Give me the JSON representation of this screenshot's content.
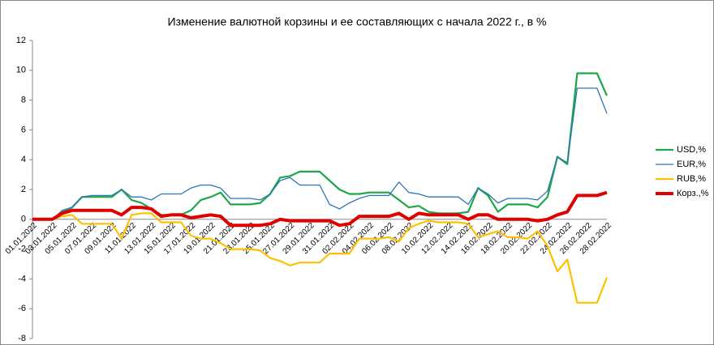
{
  "chart_data": {
    "type": "line",
    "title": "Изменение валютной корзины и ее составляющих с начала 2022 г., в %",
    "categories": [
      "01.01.2022",
      null,
      "03.01.2022",
      null,
      "05.01.2022",
      null,
      "07.01.2022",
      null,
      "09.01.2022",
      null,
      "11.01.2022",
      null,
      "13.01.2022",
      null,
      "15.01.2022",
      null,
      "17.01.2022",
      null,
      "19.01.2022",
      null,
      "21.01.2022",
      null,
      "23.01.2022",
      null,
      "25.01.2022",
      null,
      "27.01.2022",
      null,
      "29.01.2022",
      null,
      "31.01.2022",
      null,
      "02.02.2022",
      null,
      "04.02.2022",
      null,
      "06.02.2022",
      null,
      "08.02.2022",
      null,
      "10.02.2022",
      null,
      "12.02.2022",
      null,
      "14.02.2022",
      null,
      "16.02.2022",
      null,
      "18.02.2022",
      null,
      "20.02.2022",
      null,
      "22.02.2022",
      null,
      "24.02.2022",
      null,
      "26.02.2022",
      null,
      "28.02.2022"
    ],
    "series": [
      {
        "name": "USD,%",
        "color": "#1fa64a",
        "width": 2.2,
        "values": [
          0,
          0,
          0,
          0.5,
          0.8,
          1.5,
          1.5,
          1.5,
          1.5,
          2.0,
          1.3,
          1.1,
          0.7,
          0.3,
          0.3,
          0.3,
          0.6,
          1.3,
          1.5,
          1.8,
          1.0,
          1.0,
          1.0,
          1.1,
          1.7,
          2.8,
          2.9,
          3.2,
          3.2,
          3.2,
          2.6,
          2.0,
          1.7,
          1.7,
          1.8,
          1.8,
          1.8,
          1.3,
          0.8,
          0.9,
          0.5,
          0.4,
          0.4,
          0.4,
          0.5,
          2.1,
          1.6,
          0.5,
          1.0,
          1.0,
          1.0,
          0.8,
          1.5,
          4.2,
          3.7,
          9.8,
          9.8,
          9.8,
          8.3
        ]
      },
      {
        "name": "EUR,%",
        "color": "#2e75b6",
        "width": 1.3,
        "values": [
          0,
          0,
          0,
          0.6,
          0.8,
          1.5,
          1.6,
          1.6,
          1.6,
          2.0,
          1.5,
          1.5,
          1.3,
          1.7,
          1.7,
          1.7,
          2.1,
          2.3,
          2.3,
          2.1,
          1.4,
          1.4,
          1.4,
          1.3,
          1.7,
          2.6,
          2.8,
          2.3,
          2.3,
          2.3,
          1.0,
          0.7,
          1.1,
          1.4,
          1.6,
          1.6,
          1.6,
          2.5,
          1.8,
          1.7,
          1.5,
          1.5,
          1.5,
          1.5,
          1.0,
          2.1,
          1.7,
          1.1,
          1.4,
          1.4,
          1.4,
          1.3,
          1.9,
          4.2,
          3.8,
          8.8,
          8.8,
          8.8,
          7.1
        ]
      },
      {
        "name": "RUB,%",
        "color": "#ffc000",
        "width": 2.2,
        "values": [
          0,
          0,
          0,
          0.2,
          0.3,
          -0.3,
          -0.3,
          -0.3,
          -0.3,
          -1.3,
          0.3,
          0.4,
          0.4,
          -0.2,
          -0.2,
          -0.2,
          -1.1,
          -1.3,
          -1.3,
          -1.6,
          -2.0,
          -2.0,
          -2.0,
          -2.1,
          -2.6,
          -2.8,
          -3.1,
          -2.9,
          -2.9,
          -2.9,
          -2.3,
          -2.3,
          -2.3,
          -1.3,
          -1.3,
          -1.3,
          -1.2,
          -1.5,
          -0.6,
          -0.3,
          -0.1,
          -0.2,
          -0.2,
          -0.2,
          -0.3,
          -1.2,
          -1.0,
          -0.8,
          -1.2,
          -1.2,
          -1.3,
          -0.8,
          -1.8,
          -3.5,
          -2.7,
          -5.6,
          -5.6,
          -5.6,
          -3.9
        ]
      },
      {
        "name": "Корз.,%",
        "color": "#e00000",
        "width": 4,
        "values": [
          0,
          0,
          0,
          0.4,
          0.6,
          0.6,
          0.6,
          0.6,
          0.6,
          0.3,
          0.8,
          0.8,
          0.7,
          0.2,
          0.3,
          0.3,
          0.1,
          0.2,
          0.3,
          0.2,
          -0.4,
          -0.4,
          -0.4,
          -0.4,
          -0.3,
          0,
          -0.1,
          -0.1,
          -0.1,
          -0.1,
          -0.1,
          -0.4,
          -0.3,
          0.2,
          0.2,
          0.2,
          0.2,
          0.4,
          0,
          0.4,
          0.3,
          0.3,
          0.3,
          0.3,
          0,
          0.3,
          0.3,
          0,
          0,
          0,
          0,
          -0.1,
          0,
          0.3,
          0.5,
          1.6,
          1.6,
          1.6,
          1.8
        ]
      }
    ],
    "ylim": [
      -8,
      12
    ],
    "yticks": [
      -8,
      -6,
      -4,
      -2,
      0,
      2,
      4,
      6,
      8,
      10,
      12
    ],
    "grid": false,
    "legend": "right"
  }
}
